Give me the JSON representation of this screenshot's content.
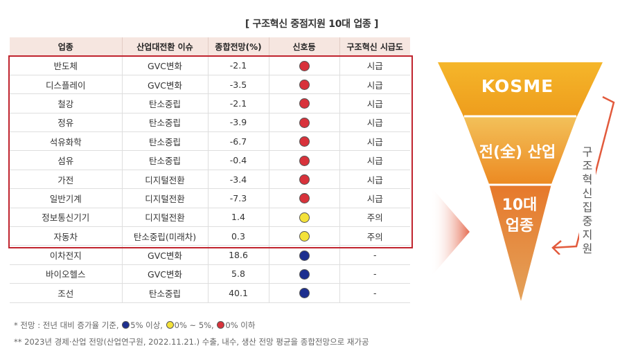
{
  "title": "[ 구조혁신 중점지원 10대 업종 ]",
  "table": {
    "headers": [
      "업종",
      "산업대전환 이슈",
      "종합전망(%)",
      "신호등",
      "구조혁신 시급도"
    ],
    "rows": [
      {
        "industry": "반도체",
        "issue": "GVC변화",
        "outlook": "-2.1",
        "signal": "#d8323b",
        "urgency": "시급"
      },
      {
        "industry": "디스플레이",
        "issue": "GVC변화",
        "outlook": "-3.5",
        "signal": "#d8323b",
        "urgency": "시급"
      },
      {
        "industry": "철강",
        "issue": "탄소중립",
        "outlook": "-2.1",
        "signal": "#d8323b",
        "urgency": "시급"
      },
      {
        "industry": "정유",
        "issue": "탄소중립",
        "outlook": "-3.9",
        "signal": "#d8323b",
        "urgency": "시급"
      },
      {
        "industry": "석유화학",
        "issue": "탄소중립",
        "outlook": "-6.7",
        "signal": "#d8323b",
        "urgency": "시급"
      },
      {
        "industry": "섬유",
        "issue": "탄소중립",
        "outlook": "-0.4",
        "signal": "#d8323b",
        "urgency": "시급"
      },
      {
        "industry": "가전",
        "issue": "디지털전환",
        "outlook": "-3.4",
        "signal": "#d8323b",
        "urgency": "시급"
      },
      {
        "industry": "일반기계",
        "issue": "디지털전환",
        "outlook": "-7.3",
        "signal": "#d8323b",
        "urgency": "시급"
      },
      {
        "industry": "정보통신기기",
        "issue": "디지털전환",
        "outlook": "1.4",
        "signal": "#f4e23a",
        "urgency": "주의"
      },
      {
        "industry": "자동차",
        "issue": "탄소중립(미래차)",
        "outlook": "0.3",
        "signal": "#f4e23a",
        "urgency": "주의"
      },
      {
        "industry": "이차전지",
        "issue": "GVC변화",
        "outlook": "18.6",
        "signal": "#1d2f8f",
        "urgency": "-"
      },
      {
        "industry": "바이오헬스",
        "issue": "GVC변화",
        "outlook": "5.8",
        "signal": "#1d2f8f",
        "urgency": "-"
      },
      {
        "industry": "조선",
        "issue": "탄소중립",
        "outlook": "40.1",
        "signal": "#1d2f8f",
        "urgency": "-"
      }
    ]
  },
  "notes": {
    "line1_prefix": "* 전망 : 전년 대비 증가율 기준,",
    "legend": [
      {
        "color": "#1d2f8f",
        "label": "5% 이상,"
      },
      {
        "color": "#f4e23a",
        "label": "0% ~ 5%,"
      },
      {
        "color": "#d8323b",
        "label": "0% 이하"
      }
    ],
    "line2": "** 2023년 경제·산업 전망(산업연구원, 2022.11.21.) 수출, 내수, 생산 전망 평균을 종합전망으로 재가공"
  },
  "funnel": {
    "top": "KOSME",
    "middle": "전(全) 산업",
    "bottom_line1": "10대",
    "bottom_line2": "업종",
    "side": [
      "구조",
      "혁신",
      "집중",
      "지원"
    ],
    "colors": {
      "top": "#f0a81e",
      "middle": "#ec8e22",
      "bottom": "#e06a1f",
      "accent": "#e25a3c"
    }
  }
}
